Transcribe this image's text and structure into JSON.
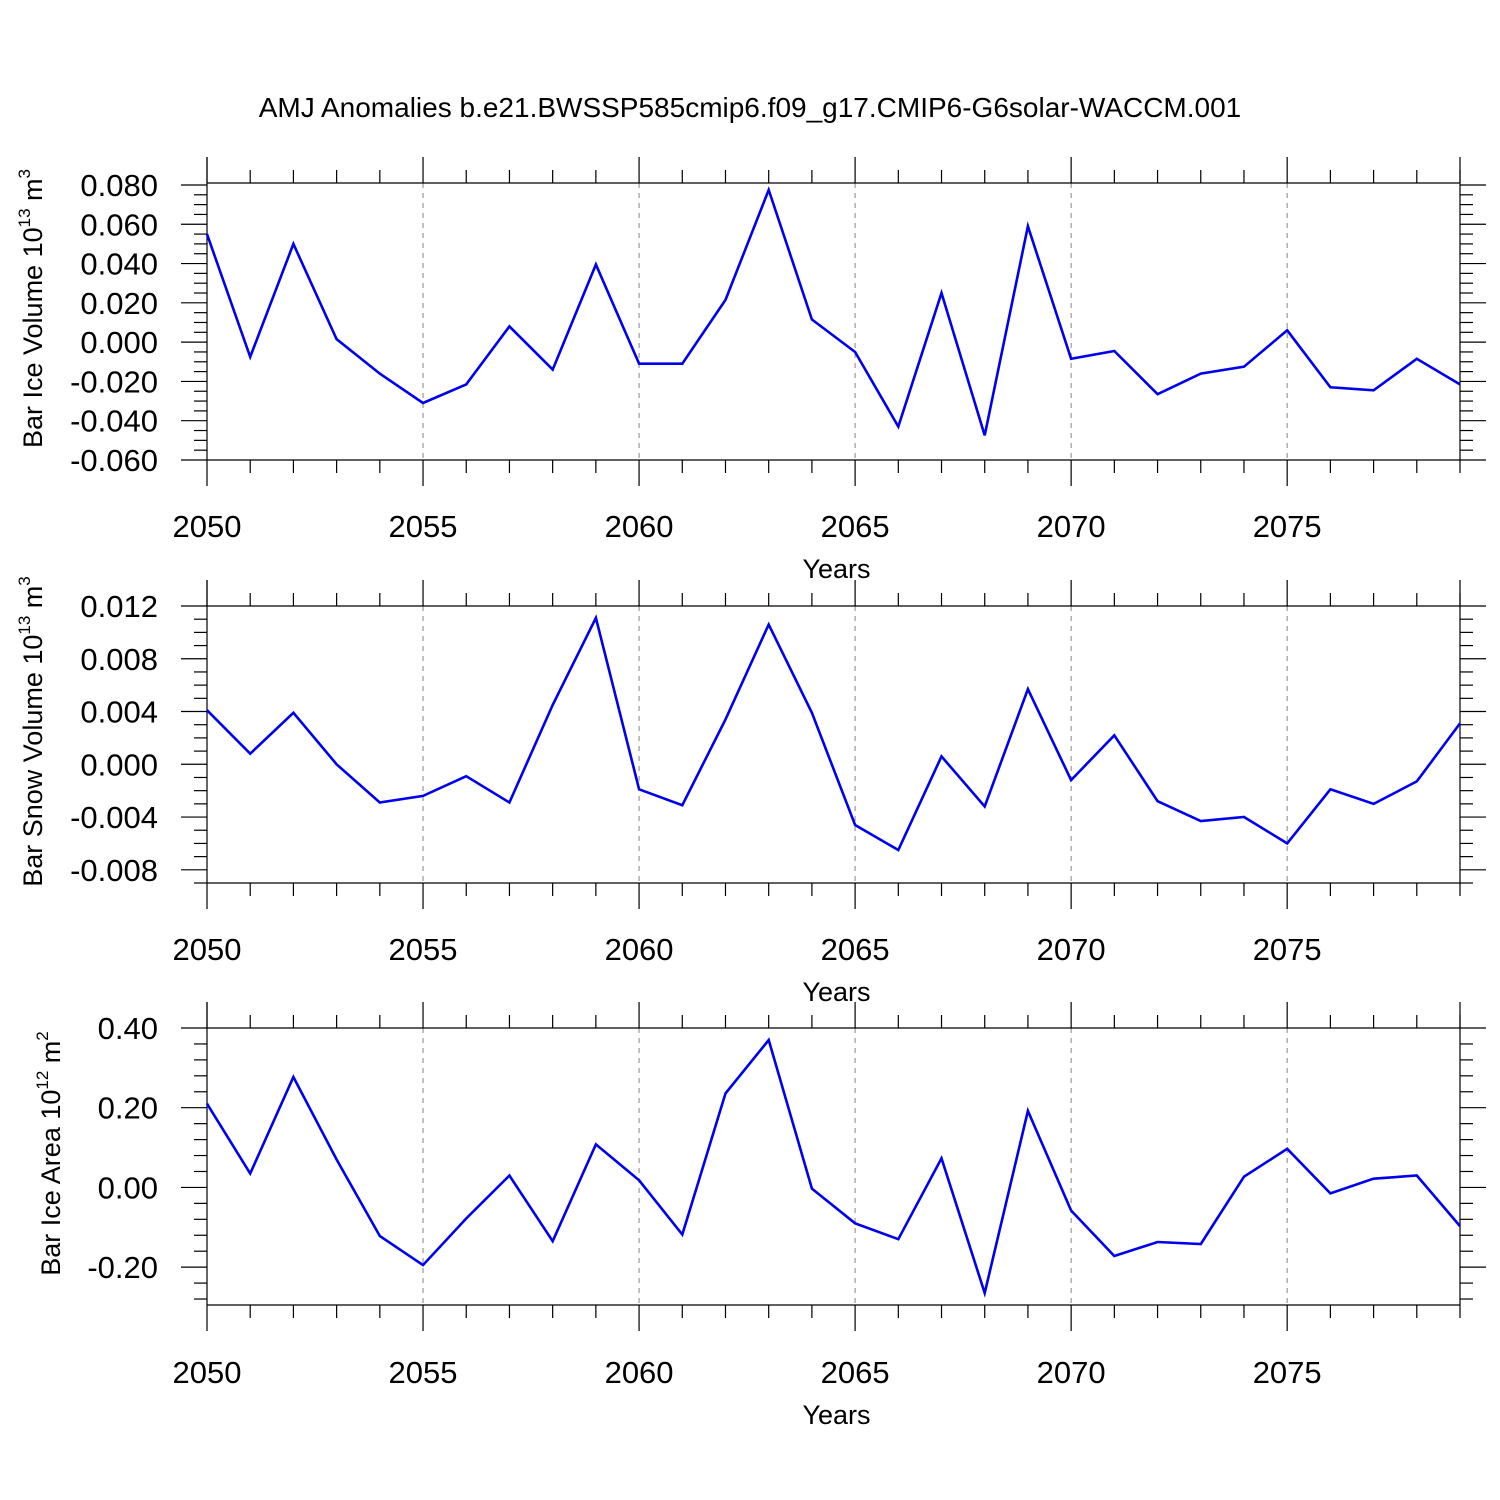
{
  "figure": {
    "title": "AMJ Anomalies b.e21.BWSSP585cmip6.f09_g17.CMIP6-G6solar-WACCM.001",
    "line_color": "#0000ee",
    "grid_color": "#999999"
  },
  "chart_data": [
    {
      "type": "line",
      "xlabel": "Years",
      "ylabel": "Bar Ice Volume 10",
      "ylabel_exp": "13",
      "ylabel_unit": "m",
      "ylabel_unit_exp": "3",
      "xlim": [
        2050,
        2079
      ],
      "ylim": [
        -0.06,
        0.081
      ],
      "xticks": [
        2050,
        2055,
        2060,
        2065,
        2070,
        2075
      ],
      "xtick_labels": [
        "2050",
        "2055",
        "2060",
        "2065",
        "2070",
        "2075"
      ],
      "yticks": [
        -0.06,
        -0.04,
        -0.02,
        0.0,
        0.02,
        0.04,
        0.06,
        0.08
      ],
      "ytick_labels": [
        "-0.060",
        "-0.040",
        "-0.020",
        "0.000",
        "0.020",
        "0.040",
        "0.060",
        "0.080"
      ],
      "yminor_step": 0.005,
      "grid": "vertical dashed",
      "x": [
        2050,
        2051,
        2052,
        2053,
        2054,
        2055,
        2056,
        2057,
        2058,
        2059,
        2060,
        2061,
        2062,
        2063,
        2064,
        2065,
        2066,
        2067,
        2068,
        2069,
        2070,
        2071,
        2072,
        2073,
        2074,
        2075,
        2076,
        2077,
        2078,
        2079
      ],
      "series": [
        {
          "values": [
            0.055,
            -0.0075,
            0.05,
            0.0015,
            -0.016,
            -0.031,
            -0.0215,
            0.008,
            -0.014,
            0.0395,
            -0.011,
            -0.011,
            0.0215,
            0.0775,
            0.0115,
            -0.005,
            -0.043,
            0.025,
            -0.0475,
            0.059,
            -0.0085,
            -0.0045,
            -0.0265,
            -0.016,
            -0.0125,
            0.006,
            -0.023,
            -0.0245,
            -0.0085,
            -0.0215
          ]
        }
      ]
    },
    {
      "type": "line",
      "xlabel": "Years",
      "ylabel": "Bar Snow Volume 10",
      "ylabel_exp": "13",
      "ylabel_unit": "m",
      "ylabel_unit_exp": "3",
      "xlim": [
        2050,
        2079
      ],
      "ylim": [
        -0.009,
        0.012
      ],
      "xticks": [
        2050,
        2055,
        2060,
        2065,
        2070,
        2075
      ],
      "xtick_labels": [
        "2050",
        "2055",
        "2060",
        "2065",
        "2070",
        "2075"
      ],
      "yticks": [
        -0.008,
        -0.004,
        0.0,
        0.004,
        0.008,
        0.012
      ],
      "ytick_labels": [
        "-0.008",
        "-0.004",
        "0.000",
        "0.004",
        "0.008",
        "0.012"
      ],
      "yminor_step": 0.001,
      "grid": "vertical dashed",
      "x": [
        2050,
        2051,
        2052,
        2053,
        2054,
        2055,
        2056,
        2057,
        2058,
        2059,
        2060,
        2061,
        2062,
        2063,
        2064,
        2065,
        2066,
        2067,
        2068,
        2069,
        2070,
        2071,
        2072,
        2073,
        2074,
        2075,
        2076,
        2077,
        2078,
        2079
      ],
      "series": [
        {
          "values": [
            0.0041,
            0.0008,
            0.0039,
            0.0,
            -0.0029,
            -0.0024,
            -0.0009,
            -0.0029,
            0.0045,
            0.0111,
            -0.0019,
            -0.0031,
            0.0034,
            0.0106,
            0.0039,
            -0.0046,
            -0.0065,
            0.0006,
            -0.0032,
            0.0057,
            -0.0012,
            0.0022,
            -0.0028,
            -0.0043,
            -0.004,
            -0.006,
            -0.0019,
            -0.003,
            -0.0013,
            0.0031
          ]
        }
      ]
    },
    {
      "type": "line",
      "xlabel": "Years",
      "ylabel": "Bar Ice Area 10",
      "ylabel_exp": "12",
      "ylabel_unit": "m",
      "ylabel_unit_exp": "2",
      "xlim": [
        2050,
        2079
      ],
      "ylim": [
        -0.295,
        0.4
      ],
      "xticks": [
        2050,
        2055,
        2060,
        2065,
        2070,
        2075
      ],
      "xtick_labels": [
        "2050",
        "2055",
        "2060",
        "2065",
        "2070",
        "2075"
      ],
      "yticks": [
        -0.2,
        0.0,
        0.2,
        0.4
      ],
      "ytick_labels": [
        "-0.20",
        "0.00",
        "0.20",
        "0.40"
      ],
      "yminor_step": 0.04,
      "grid": "vertical dashed",
      "x": [
        2050,
        2051,
        2052,
        2053,
        2054,
        2055,
        2056,
        2057,
        2058,
        2059,
        2060,
        2061,
        2062,
        2063,
        2064,
        2065,
        2066,
        2067,
        2068,
        2069,
        2070,
        2071,
        2072,
        2073,
        2074,
        2075,
        2076,
        2077,
        2078,
        2079
      ],
      "series": [
        {
          "values": [
            0.21,
            0.035,
            0.277,
            0.07,
            -0.122,
            -0.195,
            -0.078,
            0.03,
            -0.135,
            0.108,
            0.018,
            -0.118,
            0.236,
            0.37,
            -0.003,
            -0.09,
            -0.13,
            0.073,
            -0.265,
            0.192,
            -0.058,
            -0.172,
            -0.137,
            -0.142,
            0.027,
            0.097,
            -0.015,
            0.022,
            0.03,
            -0.097
          ]
        }
      ]
    }
  ]
}
